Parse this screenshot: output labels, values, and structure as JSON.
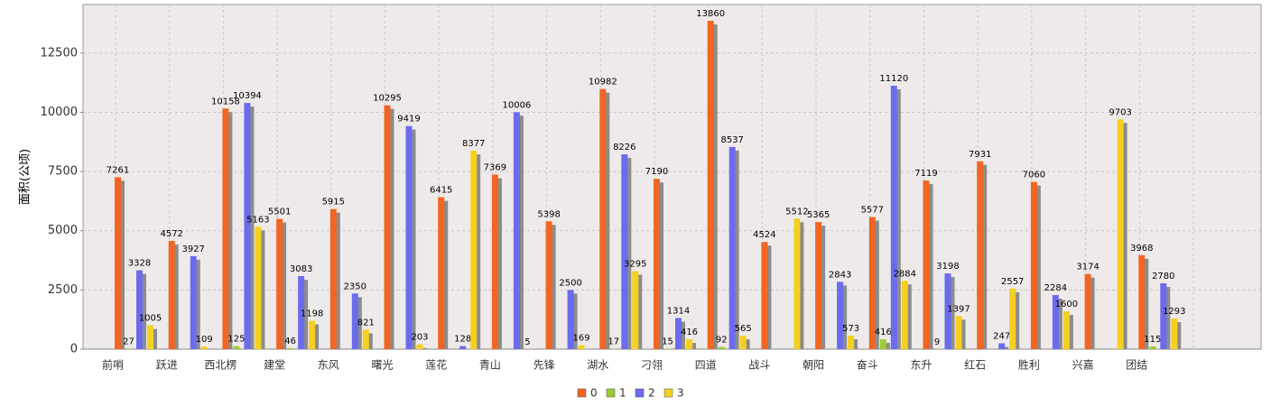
{
  "chart_data": {
    "type": "bar",
    "y_label": "面积(公顷)",
    "categories": [
      "前哨",
      "跃进",
      "西北楞",
      "建堂",
      "东风",
      "曙光",
      "莲花",
      "青山",
      "先锋",
      "湖水",
      "刁翎",
      "四道",
      "战斗",
      "朝阳",
      "奋斗",
      "东升",
      "红石",
      "胜利",
      "兴嘉",
      "团结"
    ],
    "series": [
      {
        "name": "0",
        "color": "#f26522",
        "values": [
          7261,
          4572,
          10158,
          5501,
          5915,
          10295,
          6415,
          7369,
          5398,
          10982,
          7190,
          13860,
          4524,
          5365,
          5577,
          7119,
          7931,
          7060,
          3174,
          3968
        ]
      },
      {
        "name": "1",
        "color": "#9acd32",
        "values": [
          27,
          0,
          125,
          46,
          0,
          0,
          0,
          0,
          0,
          17,
          15,
          92,
          0,
          0,
          416,
          9,
          0,
          0,
          0,
          115
        ]
      },
      {
        "name": "2",
        "color": "#6b6bef",
        "values": [
          3328,
          3927,
          10394,
          3083,
          2350,
          9419,
          128,
          10006,
          2500,
          8226,
          1314,
          8537,
          0,
          2843,
          11120,
          3198,
          247,
          2284,
          0,
          2780
        ]
      },
      {
        "name": "3",
        "color": "#f5d020",
        "values": [
          1005,
          109,
          5163,
          1198,
          821,
          203,
          8377,
          5,
          169,
          3295,
          416,
          565,
          5512,
          573,
          2884,
          1397,
          2557,
          1600,
          9703,
          1293
        ]
      }
    ],
    "ylim": [
      0,
      14550
    ],
    "yticks": [
      0,
      2500,
      5000,
      7500,
      10000,
      12500
    ],
    "grid": true,
    "legend": "bottom"
  }
}
